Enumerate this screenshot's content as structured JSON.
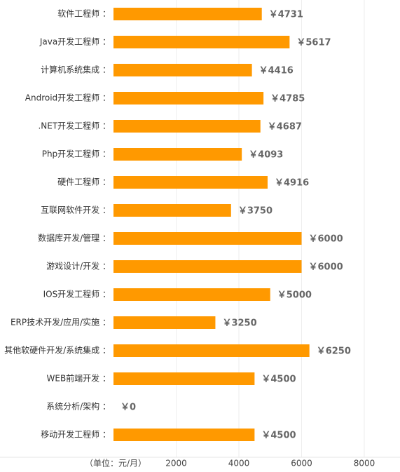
{
  "chart_data": {
    "type": "barh",
    "x_label": "（单位：元/月）",
    "categories": [
      "软件工程师 ：",
      "Java开发工程师 ：",
      "计算机系统集成 ：",
      "Android开发工程师 ：",
      ".NET开发工程师 ：",
      "Php开发工程师 ：",
      "硬件工程师 ：",
      "互联网软件开发 ：",
      "数据库开发/管理 ：",
      "游戏设计/开发 ：",
      "IOS开发工程师 ：",
      "ERP技术开发/应用/实施 ：",
      "其他软硬件开发/系统集成 ：",
      "WEB前端开发 ：",
      "系统分析/架构 ：",
      "移动开发工程师 ："
    ],
    "values": [
      4731,
      5617,
      4416,
      4785,
      4687,
      4093,
      4916,
      3750,
      6000,
      6000,
      5000,
      3250,
      6250,
      4500,
      0,
      4500
    ],
    "value_labels": [
      "￥4731",
      "￥5617",
      "￥4416",
      "￥4785",
      "￥4687",
      "￥4093",
      "￥4916",
      "￥3750",
      "￥6000",
      "￥6000",
      "￥5000",
      "￥3250",
      "￥6250",
      "￥4500",
      "￥0",
      "￥4500"
    ],
    "color": "#ff9900",
    "xlim": [
      0,
      8000
    ],
    "xticks": [
      2000,
      4000,
      6000,
      8000
    ],
    "grid": true
  }
}
